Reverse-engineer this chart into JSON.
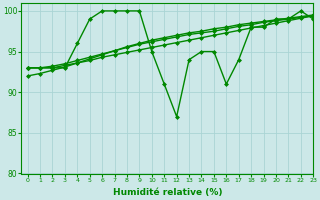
{
  "title": "",
  "xlabel": "Humidité relative (%)",
  "ylabel": "",
  "xlim": [
    -0.5,
    23
  ],
  "ylim": [
    80,
    101
  ],
  "yticks": [
    80,
    85,
    90,
    95,
    100
  ],
  "xticks": [
    0,
    1,
    2,
    3,
    4,
    5,
    6,
    7,
    8,
    9,
    10,
    11,
    12,
    13,
    14,
    15,
    16,
    17,
    18,
    19,
    20,
    21,
    22,
    23
  ],
  "background_color": "#cce8e8",
  "grid_color": "#aad4d4",
  "line_color": "#008800",
  "line_width": 1.0,
  "marker": "D",
  "marker_size": 2.0,
  "series": [
    [
      93,
      93,
      93,
      93,
      96,
      99,
      100,
      100,
      100,
      100,
      95,
      91,
      87,
      94,
      95,
      95,
      91,
      94,
      98,
      98,
      99,
      99,
      100,
      99
    ],
    [
      93,
      93,
      93,
      93.3,
      93.6,
      93.9,
      94.3,
      94.6,
      94.9,
      95.2,
      95.5,
      95.8,
      96.1,
      96.4,
      96.7,
      97.0,
      97.3,
      97.6,
      97.9,
      98.2,
      98.5,
      98.8,
      99.1,
      99.4
    ],
    [
      93,
      93,
      93.2,
      93.5,
      93.9,
      94.3,
      94.7,
      95.1,
      95.5,
      95.9,
      96.2,
      96.5,
      96.8,
      97.1,
      97.3,
      97.5,
      97.8,
      98.1,
      98.3,
      98.6,
      98.8,
      99.0,
      99.2,
      99.4
    ],
    [
      92,
      92.3,
      92.7,
      93.1,
      93.6,
      94.1,
      94.6,
      95.1,
      95.6,
      96.0,
      96.4,
      96.7,
      97.0,
      97.3,
      97.5,
      97.8,
      98.0,
      98.3,
      98.5,
      98.7,
      98.9,
      99.1,
      99.3,
      99.5
    ]
  ]
}
